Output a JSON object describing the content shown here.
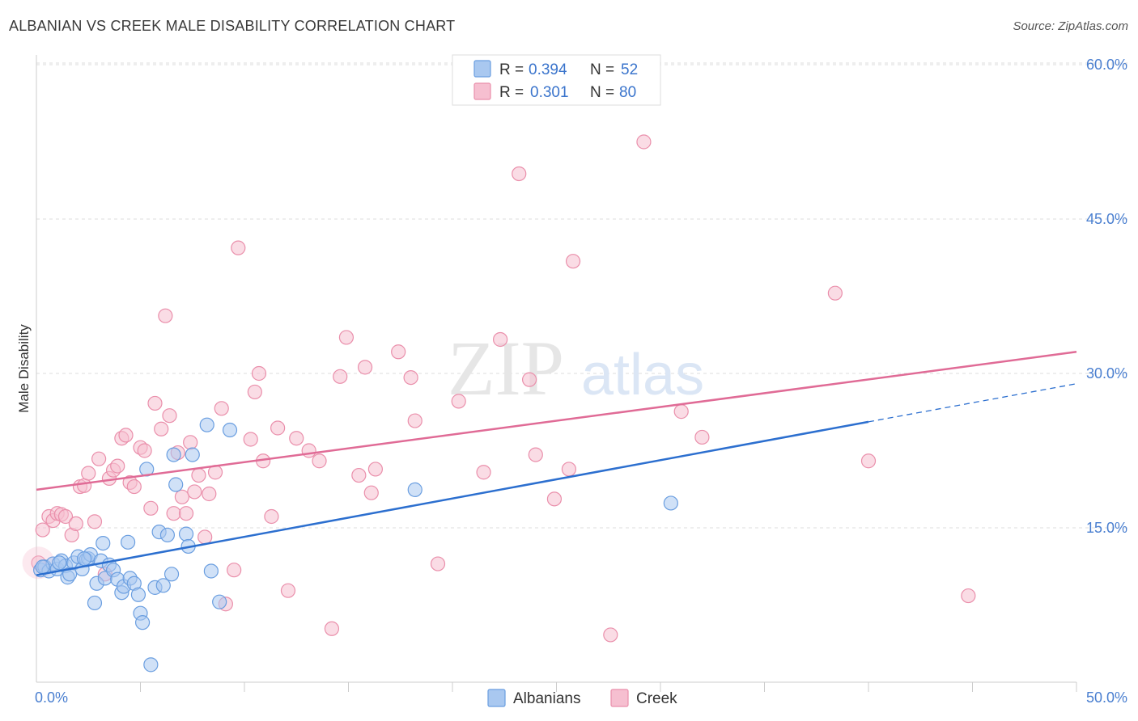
{
  "title": "ALBANIAN VS CREEK MALE DISABILITY CORRELATION CHART",
  "source": "Source: ZipAtlas.com",
  "watermark": {
    "zip": "ZIP",
    "atlas": "atlas"
  },
  "colors": {
    "albanians_fill": "#a9c8f0",
    "albanians_stroke": "#6a9ee0",
    "albanians_line": "#2c6fcf",
    "creek_fill": "#f6bfd0",
    "creek_stroke": "#ea8fab",
    "creek_line": "#e06b96",
    "grid": "#dddddd",
    "tick_label": "#4a7fd0"
  },
  "legend": {
    "r_label": "R =",
    "n_label": "N =",
    "albanians": {
      "r": "0.394",
      "n": "52"
    },
    "creek": {
      "r": "0.301",
      "n": "80"
    }
  },
  "bottom_legend": {
    "albanians": "Albanians",
    "creek": "Creek"
  },
  "chart_data": {
    "type": "scatter",
    "title": "ALBANIAN VS CREEK MALE DISABILITY CORRELATION CHART",
    "xlabel": "",
    "ylabel": "Male Disability",
    "xlim": [
      0,
      50
    ],
    "ylim": [
      0,
      60
    ],
    "x_tick_labels": [
      "0.0%",
      "50.0%"
    ],
    "y_ticks": [
      15,
      30,
      45,
      60
    ],
    "y_tick_labels": [
      "15.0%",
      "30.0%",
      "45.0%",
      "60.0%"
    ],
    "grid": true,
    "legend_position": "top-center",
    "series": [
      {
        "name": "Albanians",
        "r": 0.394,
        "n": 52,
        "trend": {
          "x0": 0,
          "y0": 10.4,
          "x1": 40,
          "y1": 25.3,
          "dash_to_x": 50,
          "dash_to_y": 29.0
        },
        "points": [
          [
            0.2,
            10.9
          ],
          [
            0.4,
            11.2
          ],
          [
            0.6,
            10.8
          ],
          [
            0.8,
            11.5
          ],
          [
            1.0,
            11.0
          ],
          [
            1.2,
            11.8
          ],
          [
            1.4,
            11.3
          ],
          [
            1.5,
            10.2
          ],
          [
            1.6,
            10.5
          ],
          [
            1.8,
            11.6
          ],
          [
            2.0,
            12.2
          ],
          [
            2.2,
            11.0
          ],
          [
            2.4,
            11.9
          ],
          [
            2.5,
            12.0
          ],
          [
            2.6,
            12.4
          ],
          [
            2.8,
            7.7
          ],
          [
            2.9,
            9.6
          ],
          [
            3.1,
            11.8
          ],
          [
            3.2,
            13.5
          ],
          [
            3.3,
            10.1
          ],
          [
            3.5,
            11.4
          ],
          [
            3.7,
            10.9
          ],
          [
            3.9,
            10.0
          ],
          [
            4.1,
            8.7
          ],
          [
            4.2,
            9.3
          ],
          [
            4.4,
            13.6
          ],
          [
            4.5,
            10.1
          ],
          [
            4.7,
            9.6
          ],
          [
            4.9,
            8.5
          ],
          [
            5.0,
            6.7
          ],
          [
            5.1,
            5.8
          ],
          [
            5.3,
            20.7
          ],
          [
            5.5,
            1.7
          ],
          [
            5.7,
            9.2
          ],
          [
            5.9,
            14.6
          ],
          [
            6.1,
            9.4
          ],
          [
            6.3,
            14.3
          ],
          [
            6.5,
            10.5
          ],
          [
            6.6,
            22.1
          ],
          [
            6.7,
            19.2
          ],
          [
            7.2,
            14.4
          ],
          [
            7.3,
            13.2
          ],
          [
            7.5,
            22.1
          ],
          [
            8.2,
            25.0
          ],
          [
            8.4,
            10.8
          ],
          [
            8.8,
            7.8
          ],
          [
            9.3,
            24.5
          ],
          [
            18.2,
            18.7
          ],
          [
            30.5,
            17.4
          ],
          [
            0.3,
            11.2
          ],
          [
            1.1,
            11.6
          ],
          [
            2.3,
            12.0
          ]
        ]
      },
      {
        "name": "Creek",
        "r": 0.301,
        "n": 80,
        "trend": {
          "x0": 0,
          "y0": 18.7,
          "x1": 50,
          "y1": 32.1
        },
        "points": [
          [
            0.3,
            14.8
          ],
          [
            0.6,
            16.1
          ],
          [
            0.8,
            15.7
          ],
          [
            1.0,
            16.4
          ],
          [
            1.2,
            16.3
          ],
          [
            1.4,
            16.1
          ],
          [
            1.7,
            14.3
          ],
          [
            1.9,
            15.4
          ],
          [
            2.1,
            19.0
          ],
          [
            2.3,
            19.1
          ],
          [
            2.5,
            20.3
          ],
          [
            2.8,
            15.6
          ],
          [
            3.0,
            21.7
          ],
          [
            3.3,
            10.5
          ],
          [
            3.5,
            19.8
          ],
          [
            3.7,
            20.6
          ],
          [
            3.9,
            21.0
          ],
          [
            4.1,
            23.7
          ],
          [
            4.3,
            24.0
          ],
          [
            4.5,
            19.4
          ],
          [
            4.7,
            19.0
          ],
          [
            5.0,
            22.8
          ],
          [
            5.2,
            22.5
          ],
          [
            5.5,
            16.9
          ],
          [
            5.7,
            27.1
          ],
          [
            6.0,
            24.6
          ],
          [
            6.2,
            35.6
          ],
          [
            6.4,
            25.9
          ],
          [
            6.6,
            16.4
          ],
          [
            6.8,
            22.3
          ],
          [
            7.0,
            18.0
          ],
          [
            7.2,
            16.4
          ],
          [
            7.4,
            23.3
          ],
          [
            7.6,
            18.5
          ],
          [
            7.8,
            20.1
          ],
          [
            8.1,
            14.1
          ],
          [
            8.3,
            18.3
          ],
          [
            8.6,
            20.4
          ],
          [
            8.9,
            26.6
          ],
          [
            9.1,
            7.6
          ],
          [
            9.5,
            10.9
          ],
          [
            9.7,
            42.2
          ],
          [
            10.3,
            23.6
          ],
          [
            10.5,
            28.2
          ],
          [
            10.7,
            30.0
          ],
          [
            10.9,
            21.5
          ],
          [
            11.3,
            16.1
          ],
          [
            11.6,
            24.7
          ],
          [
            12.1,
            8.9
          ],
          [
            12.5,
            23.7
          ],
          [
            13.1,
            22.5
          ],
          [
            13.6,
            21.5
          ],
          [
            14.2,
            5.2
          ],
          [
            14.6,
            29.7
          ],
          [
            14.9,
            33.5
          ],
          [
            15.5,
            20.1
          ],
          [
            15.8,
            30.6
          ],
          [
            16.1,
            18.4
          ],
          [
            16.3,
            20.7
          ],
          [
            17.4,
            32.1
          ],
          [
            18.0,
            29.6
          ],
          [
            18.2,
            25.4
          ],
          [
            19.3,
            11.5
          ],
          [
            20.3,
            27.3
          ],
          [
            21.5,
            20.4
          ],
          [
            22.3,
            33.3
          ],
          [
            23.2,
            49.4
          ],
          [
            23.7,
            29.4
          ],
          [
            24.0,
            22.1
          ],
          [
            24.9,
            17.8
          ],
          [
            25.6,
            20.7
          ],
          [
            25.8,
            40.9
          ],
          [
            27.6,
            4.6
          ],
          [
            29.2,
            52.5
          ],
          [
            31.0,
            26.3
          ],
          [
            32.0,
            23.8
          ],
          [
            38.4,
            37.8
          ],
          [
            40.0,
            21.5
          ],
          [
            44.8,
            8.4
          ],
          [
            0.1,
            11.6
          ]
        ]
      }
    ]
  }
}
